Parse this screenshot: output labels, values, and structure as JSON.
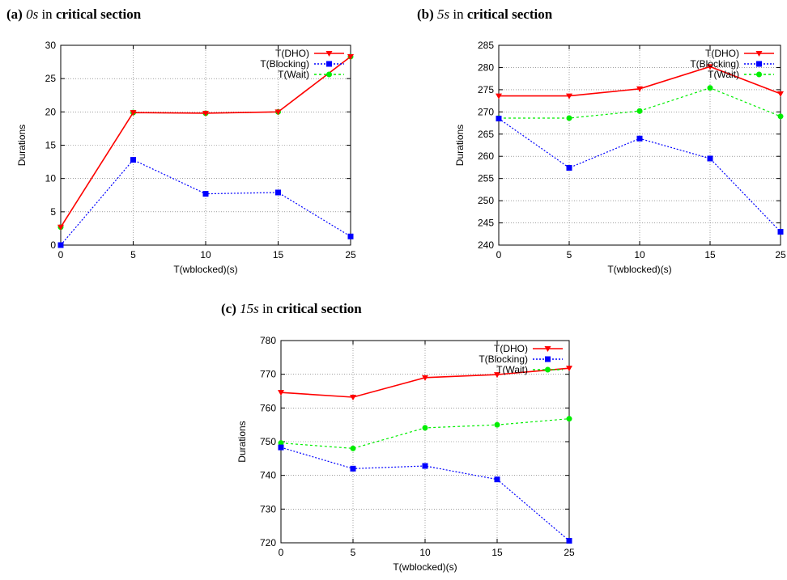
{
  "chart_data": [
    {
      "type": "line",
      "caption": {
        "label": "(a)",
        "value": "0s",
        "mid": "in",
        "tail": "critical section"
      },
      "xlabel": "T(wblocked)(s)",
      "ylabel": "Durations",
      "categories": [
        "0",
        "5",
        "10",
        "15",
        "25"
      ],
      "ylim": [
        0,
        30
      ],
      "yticks": [
        0,
        5,
        10,
        15,
        20,
        25,
        30
      ],
      "grid": true,
      "legend_position": "top-right",
      "series": [
        {
          "name": "T(DHO)",
          "color": "#ff0000",
          "marker": "triangle-down",
          "dash": "",
          "values": [
            2.7,
            19.9,
            19.8,
            20.0,
            28.3
          ]
        },
        {
          "name": "T(Blocking)",
          "color": "#0000ff",
          "marker": "square",
          "dash": "2,2",
          "values": [
            0.0,
            12.8,
            7.7,
            7.9,
            1.3
          ]
        },
        {
          "name": "T(Wait)",
          "color": "#00ee00",
          "marker": "circle",
          "dash": "3,3",
          "values": [
            2.7,
            19.9,
            19.8,
            20.0,
            28.3
          ]
        }
      ]
    },
    {
      "type": "line",
      "caption": {
        "label": "(b)",
        "value": "5s",
        "mid": "in",
        "tail": "critical section"
      },
      "xlabel": "T(wblocked)(s)",
      "ylabel": "Durations",
      "categories": [
        "0",
        "5",
        "10",
        "15",
        "25"
      ],
      "ylim": [
        240,
        285
      ],
      "yticks": [
        240,
        245,
        250,
        255,
        260,
        265,
        270,
        275,
        280,
        285
      ],
      "grid": true,
      "legend_position": "top-right",
      "series": [
        {
          "name": "T(DHO)",
          "color": "#ff0000",
          "marker": "triangle-down",
          "dash": "",
          "values": [
            273.6,
            273.6,
            275.2,
            280.2,
            274.1
          ]
        },
        {
          "name": "T(Blocking)",
          "color": "#0000ff",
          "marker": "square",
          "dash": "2,2",
          "values": [
            268.5,
            257.4,
            264.0,
            259.5,
            243.0
          ]
        },
        {
          "name": "T(Wait)",
          "color": "#00ee00",
          "marker": "circle",
          "dash": "3,3",
          "values": [
            268.6,
            268.6,
            270.2,
            275.4,
            269.0
          ]
        }
      ]
    },
    {
      "type": "line",
      "caption": {
        "label": "(c)",
        "value": "15s",
        "mid": "in",
        "tail": "critical section"
      },
      "xlabel": "T(wblocked)(s)",
      "ylabel": "Durations",
      "categories": [
        "0",
        "5",
        "10",
        "15",
        "25"
      ],
      "ylim": [
        720,
        780
      ],
      "yticks": [
        720,
        730,
        740,
        750,
        760,
        770,
        780
      ],
      "grid": true,
      "legend_position": "top-right",
      "series": [
        {
          "name": "T(DHO)",
          "color": "#ff0000",
          "marker": "triangle-down",
          "dash": "",
          "values": [
            764.6,
            763.2,
            769.0,
            769.9,
            771.8
          ]
        },
        {
          "name": "T(Blocking)",
          "color": "#0000ff",
          "marker": "square",
          "dash": "2,2",
          "values": [
            748.3,
            742.0,
            742.8,
            738.8,
            720.6
          ]
        },
        {
          "name": "T(Wait)",
          "color": "#00ee00",
          "marker": "circle",
          "dash": "3,3",
          "values": [
            749.6,
            748.0,
            754.1,
            755.0,
            756.8
          ]
        }
      ]
    }
  ]
}
